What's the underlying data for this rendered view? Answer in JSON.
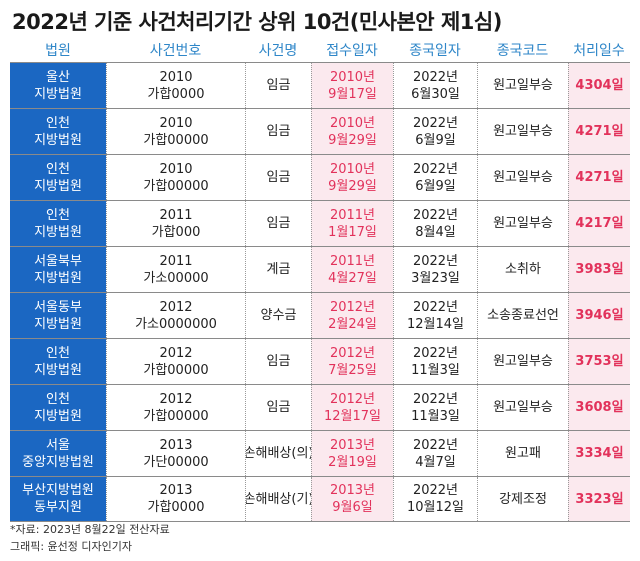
{
  "title": "2022년 기준 사건처리기간 상위 10건(민사본안 제1심)",
  "headers": [
    "법원",
    "사건번호",
    "사건명",
    "접수일자",
    "종국일자",
    "종국코드",
    "처리일수"
  ],
  "rows": [
    {
      "court": [
        "울산",
        "지방법원"
      ],
      "case_no": [
        "2010",
        "가합0000"
      ],
      "case_name": [
        "임금"
      ],
      "received": [
        "2010년",
        "9월17일"
      ],
      "concluded": [
        "2022년",
        "6월30일"
      ],
      "code": [
        "원고일부승"
      ],
      "days": "4304일"
    },
    {
      "court": [
        "인천",
        "지방법원"
      ],
      "case_no": [
        "2010",
        "가합00000"
      ],
      "case_name": [
        "임금"
      ],
      "received": [
        "2010년",
        "9월29일"
      ],
      "concluded": [
        "2022년",
        "6월9일"
      ],
      "code": [
        "원고일부승"
      ],
      "days": "4271일"
    },
    {
      "court": [
        "인천",
        "지방법원"
      ],
      "case_no": [
        "2010",
        "가합00000"
      ],
      "case_name": [
        "임금"
      ],
      "received": [
        "2010년",
        "9월29일"
      ],
      "concluded": [
        "2022년",
        "6월9일"
      ],
      "code": [
        "원고일부승"
      ],
      "days": "4271일"
    },
    {
      "court": [
        "인천",
        "지방법원"
      ],
      "case_no": [
        "2011",
        "가합000"
      ],
      "case_name": [
        "임금"
      ],
      "received": [
        "2011년",
        "1월17일"
      ],
      "concluded": [
        "2022년",
        "8월4일"
      ],
      "code": [
        "원고일부승"
      ],
      "days": "4217일"
    },
    {
      "court": [
        "서울북부",
        "지방법원"
      ],
      "case_no": [
        "2011",
        "가소00000"
      ],
      "case_name": [
        "계금"
      ],
      "received": [
        "2011년",
        "4월27일"
      ],
      "concluded": [
        "2022년",
        "3월23일"
      ],
      "code": [
        "소취하"
      ],
      "days": "3983일"
    },
    {
      "court": [
        "서울동부",
        "지방법원"
      ],
      "case_no": [
        "2012",
        "가소0000000"
      ],
      "case_name": [
        "양수금"
      ],
      "received": [
        "2012년",
        "2월24일"
      ],
      "concluded": [
        "2022년",
        "12월14일"
      ],
      "code": [
        "소송종료선언"
      ],
      "days": "3946일"
    },
    {
      "court": [
        "인천",
        "지방법원"
      ],
      "case_no": [
        "2012",
        "가합00000"
      ],
      "case_name": [
        "임금"
      ],
      "received": [
        "2012년",
        "7월25일"
      ],
      "concluded": [
        "2022년",
        "11월3일"
      ],
      "code": [
        "원고일부승"
      ],
      "days": "3753일"
    },
    {
      "court": [
        "인천",
        "지방법원"
      ],
      "case_no": [
        "2012",
        "가합00000"
      ],
      "case_name": [
        "임금"
      ],
      "received": [
        "2012년",
        "12월17일"
      ],
      "concluded": [
        "2022년",
        "11월3일"
      ],
      "code": [
        "원고일부승"
      ],
      "days": "3608일"
    },
    {
      "court": [
        "서울",
        "중앙지방법원"
      ],
      "case_no": [
        "2013",
        "가단00000"
      ],
      "case_name": [
        "손해배상(의)"
      ],
      "received": [
        "2013년",
        "2월19일"
      ],
      "concluded": [
        "2022년",
        "4월7일"
      ],
      "code": [
        "원고패"
      ],
      "days": "3334일"
    },
    {
      "court": [
        "부산지방법원",
        "동부지원"
      ],
      "case_no": [
        "2013",
        "가합0000"
      ],
      "case_name": [
        "손해배상(기)"
      ],
      "received": [
        "2013년",
        "9월6일"
      ],
      "concluded": [
        "2022년",
        "10월12일"
      ],
      "code": [
        "강제조정"
      ],
      "days": "3323일"
    }
  ],
  "footer": {
    "source": "*자료: 2023년 8월22일 전산자료",
    "credit": "그래픽: 윤선정 디자인기자"
  },
  "colors": {
    "header_text": "#2e86c8",
    "court_bg": "#1b67c2",
    "highlight_bg": "#fbe9ee",
    "highlight_text": "#e2325b"
  }
}
